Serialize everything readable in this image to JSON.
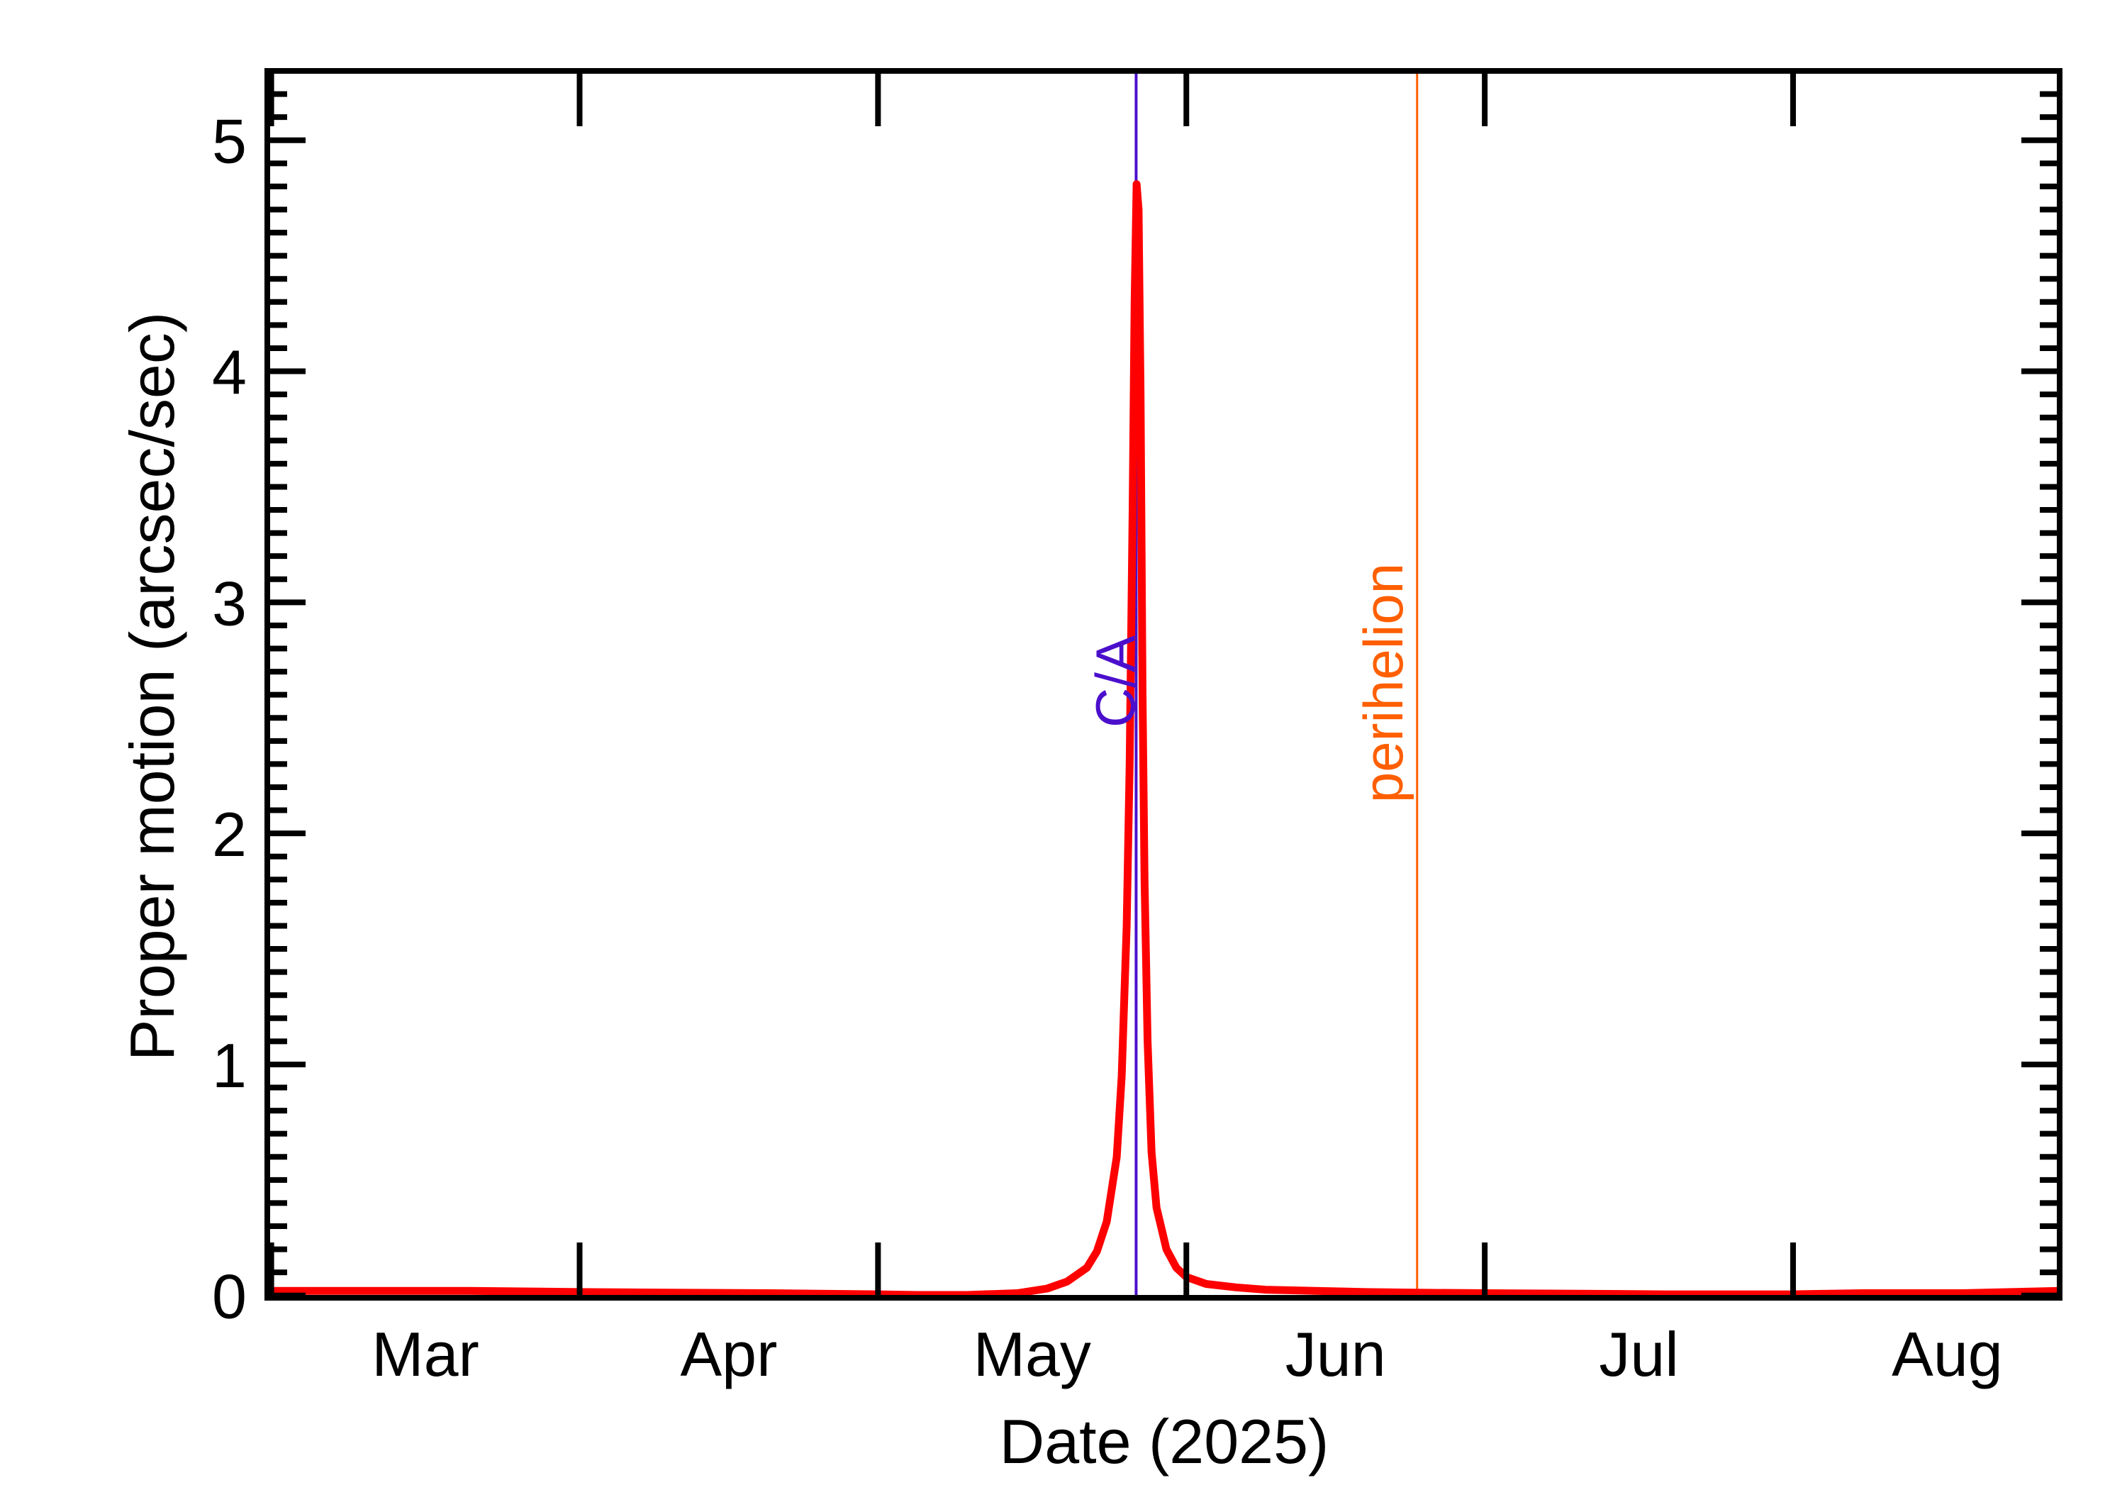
{
  "chart_data": {
    "type": "line",
    "title": "",
    "xlabel": "Date (2025)",
    "ylabel": "Proper motion (arcsec/sec)",
    "x_unit": "days since 2025-03-01",
    "xlim": [
      -0.4,
      179.8
    ],
    "ylim": [
      -0.01,
      5.3
    ],
    "grid": false,
    "legend": "none",
    "x_ticks": [
      {
        "label": "Mar",
        "tick_day": 0,
        "label_center_day": 15.5
      },
      {
        "label": "Apr",
        "tick_day": 31,
        "label_center_day": 46
      },
      {
        "label": "May",
        "tick_day": 61,
        "label_center_day": 76.5
      },
      {
        "label": "Jun",
        "tick_day": 92,
        "label_center_day": 107
      },
      {
        "label": "Jul",
        "tick_day": 122,
        "label_center_day": 137.5
      },
      {
        "label": "Aug",
        "tick_day": 153,
        "label_center_day": 168.5
      }
    ],
    "y_ticks": [
      0,
      1,
      2,
      3,
      4,
      5
    ],
    "y_tick_labels": [
      "0",
      "1",
      "2",
      "3",
      "4",
      "5"
    ],
    "y_minor_step": 0.1,
    "series": [
      {
        "name": "Proper motion",
        "color": "#FF0000",
        "x": [
          -0.4,
          10,
          20,
          31,
          40,
          50,
          61,
          65,
          70,
          75,
          78,
          80,
          82,
          83,
          84,
          85,
          85.5,
          86,
          86.3,
          86.6,
          86.8,
          87.0,
          87.2,
          87.4,
          87.6,
          87.8,
          88.1,
          88.5,
          89,
          90,
          91,
          92,
          94,
          97,
          100,
          105,
          110,
          115,
          122,
          130,
          140,
          153,
          160,
          170,
          179.8
        ],
        "values": [
          0.02,
          0.02,
          0.02,
          0.015,
          0.012,
          0.01,
          0.005,
          0.0,
          -0.005,
          0.01,
          0.03,
          0.06,
          0.12,
          0.19,
          0.32,
          0.6,
          0.95,
          1.6,
          2.3,
          3.4,
          4.3,
          4.81,
          4.7,
          3.9,
          2.6,
          1.8,
          1.1,
          0.62,
          0.38,
          0.2,
          0.12,
          0.08,
          0.05,
          0.035,
          0.025,
          0.02,
          0.015,
          0.012,
          0.01,
          0.008,
          0.005,
          0.005,
          0.01,
          0.01,
          0.02
        ]
      }
    ],
    "peak": {
      "day": 87.0,
      "value": 4.81
    },
    "annotations": [
      {
        "label": "C/A",
        "day": 86.95,
        "color": "#4B0FCC"
      },
      {
        "label": "perihelion",
        "day": 115.2,
        "color": "#FF5F00"
      }
    ]
  },
  "plot": {
    "x_axis_title": "Date (2025)",
    "y_axis_title": "Proper motion (arcsec/sec)",
    "ca_label": "C/A",
    "perihelion_label": "perihelion"
  }
}
